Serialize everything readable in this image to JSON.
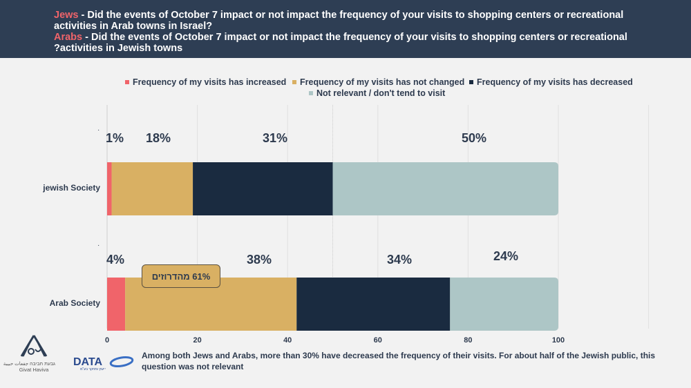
{
  "header": {
    "line1_highlight": "Jews",
    "line1_text": " - Did the events of October 7 impact or not impact the frequency of your visits to shopping centers or recreational",
    "line2_text": "activities in Arab towns in Israel?",
    "line3_highlight": "Arabs",
    "line3_text": " - Did the events of October 7 impact or not impact the frequency of your visits to shopping centers or recreational",
    "line4_text": "?activities in Jewish towns"
  },
  "callout": {
    "text": "61% מהדרוזים"
  },
  "footnote": "Among both Jews and Arabs, more than 30% have decreased the frequency of their visits. For about half of the Jewish public, this question was not relevant",
  "logos": {
    "givat_haviva_he": "גבעת חביבה جفعات حبيبة",
    "givat_haviva_en": "Givat Haviva",
    "data_name": "DATA",
    "data_sub": "ייעוץ ומחקר בע\"מ"
  },
  "colors": {
    "increased": "#f0646a",
    "not_changed": "#d9b063",
    "decreased": "#1a2b40",
    "not_relevant": "#adc6c6",
    "header_bg": "#2e3e54",
    "highlight": "#f0646a"
  },
  "chart_data": {
    "type": "bar",
    "orientation": "horizontal",
    "stacked": true,
    "title": "",
    "xlabel": "",
    "ylabel": "",
    "xlim": [
      0,
      100
    ],
    "x_ticks": [
      "0",
      "20",
      "40",
      "60",
      "80",
      "100"
    ],
    "grid": true,
    "legend_position": "top",
    "categories": [
      "jewish Society",
      "Arab Society"
    ],
    "series": [
      {
        "name": "Frequency of my visits has increased",
        "color": "#f0646a",
        "values": [
          1,
          4
        ],
        "labels": [
          "1%",
          "4%"
        ]
      },
      {
        "name": "Frequency of my visits has not changed",
        "color": "#d9b063",
        "values": [
          18,
          38
        ],
        "labels": [
          "18%",
          "38%"
        ]
      },
      {
        "name": "Frequency of my visits has decreased",
        "color": "#1a2b40",
        "values": [
          31,
          34
        ],
        "labels": [
          "31%",
          "34%"
        ]
      },
      {
        "name": "Not relevant / don't tend to visit",
        "color": "#adc6c6",
        "values": [
          50,
          24
        ],
        "labels": [
          "50%",
          "24%"
        ]
      }
    ],
    "annotations": [
      "61% מהדרוזים"
    ]
  }
}
